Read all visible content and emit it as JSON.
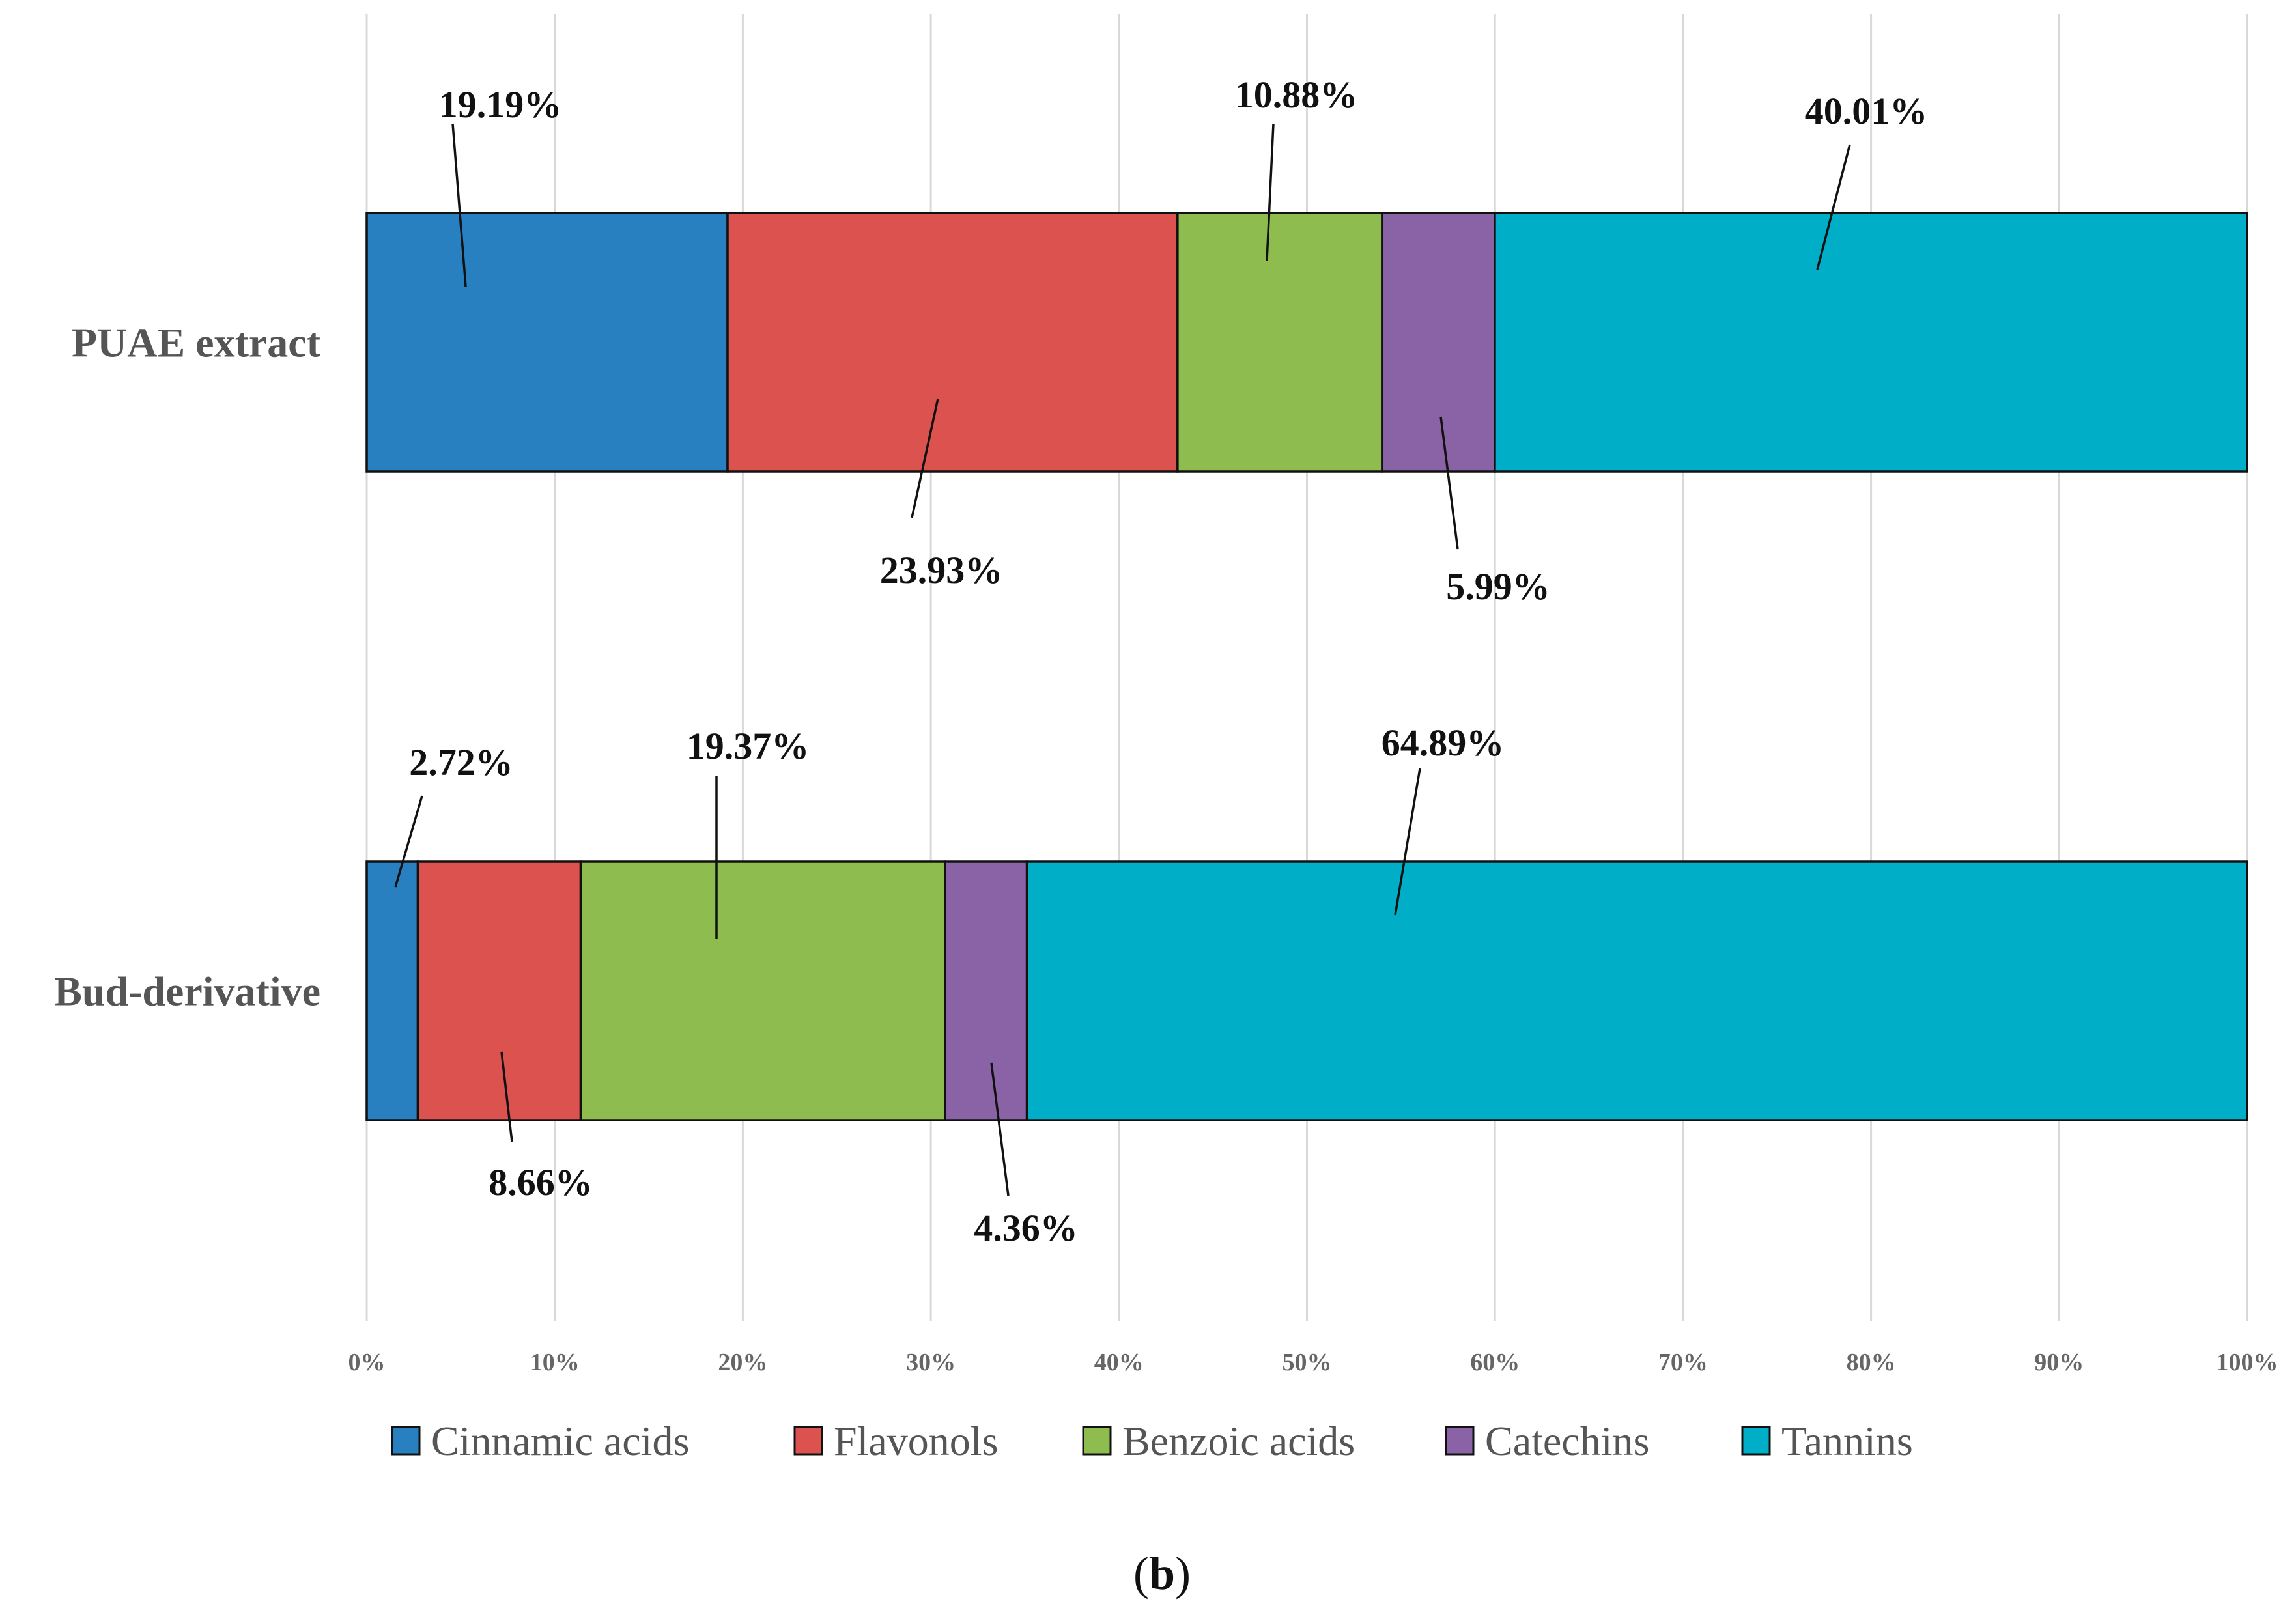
{
  "chart_data": {
    "type": "bar",
    "orientation": "horizontal",
    "stacked": true,
    "normalized_percent": true,
    "categories": [
      "PUAE extract",
      "Bud-derivative"
    ],
    "series": [
      {
        "name": "Cinnamic acids",
        "color": "#2980C0",
        "values": [
          19.19,
          2.72
        ],
        "labels": [
          "19.19%",
          "2.72%"
        ]
      },
      {
        "name": "Flavonols",
        "color": "#DC524F",
        "values": [
          23.93,
          8.66
        ],
        "labels": [
          "23.93%",
          "8.66%"
        ]
      },
      {
        "name": "Benzoic acids",
        "color": "#8FBC4E",
        "values": [
          10.88,
          19.37
        ],
        "labels": [
          "10.88%",
          "19.37%"
        ]
      },
      {
        "name": "Catechins",
        "color": "#8A63A6",
        "values": [
          5.99,
          4.36
        ],
        "labels": [
          "5.99%",
          "4.36%"
        ]
      },
      {
        "name": "Tannins",
        "color": "#00AEC7",
        "values": [
          40.01,
          64.89
        ],
        "labels": [
          "40.01%",
          "64.89%"
        ]
      }
    ],
    "x_ticks": [
      "0%",
      "10%",
      "20%",
      "30%",
      "40%",
      "50%",
      "60%",
      "70%",
      "80%",
      "90%",
      "100%"
    ],
    "xlim": [
      0,
      100
    ],
    "grid": true,
    "legend_position": "bottom",
    "title": "",
    "xlabel": "",
    "ylabel": ""
  },
  "caption": {
    "open": "(",
    "letter": "b",
    "close": ")"
  }
}
